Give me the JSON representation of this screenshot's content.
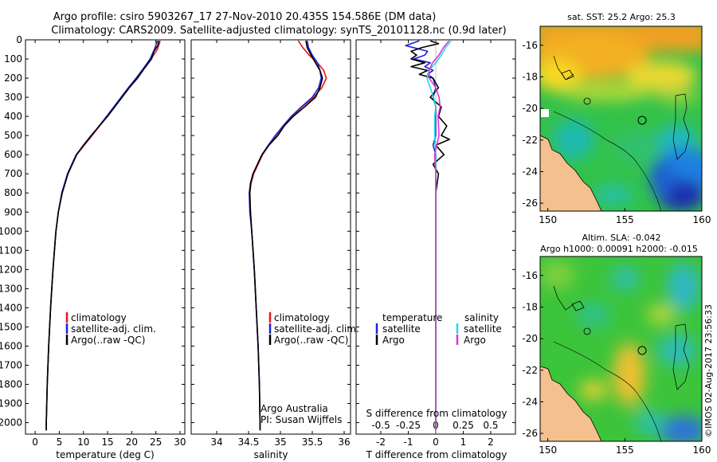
{
  "title": {
    "line1": "Argo profile: csiro 5903267_17 27-Nov-2010 20.435S 154.586E (DM data)",
    "line2": "Climatology: CARS2009. Satellite-adjusted climatology: synTS_20101128.nc (0.9d later)"
  },
  "colors": {
    "climatology": "#e8151b",
    "satellite": "#1c22d6",
    "argo": "#000000",
    "s_satellite": "#22d8e8",
    "s_argo": "#e030d0",
    "land": "#f4c08e"
  },
  "depth_ticks": [
    0,
    100,
    200,
    300,
    400,
    500,
    600,
    700,
    800,
    900,
    1000,
    1100,
    1200,
    1300,
    1400,
    1500,
    1600,
    1700,
    1800,
    1900,
    2000
  ],
  "chart_data": [
    {
      "type": "line",
      "id": "temperature",
      "xlabel": "temperature (deg C)",
      "ylabel": "",
      "xlim": [
        -2,
        31
      ],
      "ylim": [
        2060,
        0
      ],
      "xticks": [
        0,
        5,
        10,
        15,
        20,
        25,
        30
      ],
      "legend": {
        "placement": "bottom-center",
        "entries": [
          "climatology",
          "satellite-adj. clim.",
          "Argo(..raw -QC)"
        ]
      },
      "series": [
        {
          "name": "climatology",
          "depth": [
            5,
            50,
            100,
            150,
            200,
            250,
            300,
            350,
            400,
            500,
            600,
            700,
            800,
            900,
            1000,
            1200,
            1400,
            1600,
            1800,
            2000,
            2040
          ],
          "values": [
            25.9,
            25.3,
            24.0,
            22.5,
            21.0,
            19.4,
            17.9,
            16.4,
            14.9,
            11.8,
            8.6,
            6.8,
            5.6,
            4.8,
            4.3,
            3.7,
            3.2,
            2.8,
            2.5,
            2.3,
            2.3
          ]
        },
        {
          "name": "satellite-adj. clim.",
          "depth": [
            5,
            50,
            100,
            150,
            200,
            250,
            300,
            350,
            400,
            500,
            600,
            700,
            800,
            900,
            1000,
            1200,
            1400,
            1600,
            1800,
            2000,
            2040
          ],
          "values": [
            25.3,
            24.7,
            23.8,
            22.4,
            20.9,
            19.3,
            17.8,
            16.3,
            14.8,
            11.7,
            8.5,
            6.7,
            5.5,
            4.8,
            4.3,
            3.7,
            3.2,
            2.8,
            2.5,
            2.3,
            2.3
          ]
        },
        {
          "name": "Argo(..raw -QC)",
          "depth": [
            5,
            30,
            60,
            100,
            150,
            200,
            250,
            300,
            350,
            400,
            450,
            500,
            550,
            600,
            700,
            800,
            900,
            1000,
            1200,
            1400,
            1600,
            1800,
            2000,
            2040
          ],
          "values": [
            25.6,
            25.4,
            24.6,
            24.1,
            22.6,
            21.2,
            19.5,
            18.0,
            16.5,
            15.0,
            13.3,
            11.6,
            10.0,
            8.6,
            6.8,
            5.6,
            4.8,
            4.3,
            3.7,
            3.2,
            2.8,
            2.5,
            2.3,
            2.3
          ]
        }
      ]
    },
    {
      "type": "line",
      "id": "salinity",
      "xlabel": "salinity",
      "ylabel": "",
      "xlim": [
        33.6,
        36.1
      ],
      "ylim": [
        2060,
        0
      ],
      "xticks": [
        34,
        34.5,
        35,
        35.5,
        36
      ],
      "legend": {
        "placement": "bottom-center",
        "entries": [
          "climatology",
          "satellite-adj. clim.",
          "Argo(..raw -QC)"
        ]
      },
      "annotation": {
        "line1": "Argo Australia",
        "line2": "PI: Susan Wijffels"
      },
      "series": [
        {
          "name": "climatology",
          "depth": [
            5,
            40,
            80,
            120,
            160,
            200,
            250,
            300,
            350,
            400,
            450,
            500,
            550,
            600,
            650,
            700,
            750,
            800,
            900,
            1000,
            1200,
            1400,
            1600,
            1800,
            2000,
            2040
          ],
          "values": [
            35.28,
            35.35,
            35.45,
            35.58,
            35.68,
            35.72,
            35.65,
            35.52,
            35.34,
            35.18,
            35.05,
            34.93,
            34.82,
            34.72,
            34.65,
            34.58,
            34.54,
            34.52,
            34.53,
            34.55,
            34.59,
            34.62,
            34.65,
            34.67,
            34.68,
            34.68
          ]
        },
        {
          "name": "satellite-adj. clim.",
          "depth": [
            5,
            40,
            80,
            120,
            160,
            200,
            250,
            300,
            350,
            400,
            450,
            500,
            550,
            600,
            650,
            700,
            750,
            800,
            900,
            1000,
            1200,
            1400,
            1600,
            1800,
            2000,
            2040
          ],
          "values": [
            35.42,
            35.44,
            35.5,
            35.58,
            35.62,
            35.64,
            35.6,
            35.5,
            35.33,
            35.17,
            35.04,
            34.92,
            34.81,
            34.71,
            34.64,
            34.57,
            34.53,
            34.51,
            34.52,
            34.55,
            34.59,
            34.62,
            34.65,
            34.67,
            34.68,
            34.68
          ]
        },
        {
          "name": "Argo(..raw -QC)",
          "depth": [
            5,
            40,
            80,
            120,
            160,
            200,
            250,
            300,
            350,
            400,
            450,
            500,
            550,
            600,
            650,
            700,
            750,
            800,
            900,
            1000,
            1200,
            1400,
            1600,
            1800,
            2000,
            2040
          ],
          "values": [
            35.4,
            35.42,
            35.48,
            35.55,
            35.62,
            35.66,
            35.62,
            35.55,
            35.38,
            35.2,
            35.06,
            34.96,
            34.82,
            34.71,
            34.64,
            34.57,
            34.53,
            34.52,
            34.53,
            34.55,
            34.59,
            34.62,
            34.65,
            34.67,
            34.68,
            34.68
          ]
        }
      ]
    },
    {
      "type": "line",
      "id": "difference",
      "xlabel": "T difference from climatology",
      "xlabel_top": "S difference from climatology",
      "xlim": [
        -2.9,
        2.9
      ],
      "ylim": [
        2060,
        0
      ],
      "xticks_T": [
        -2,
        -1,
        0,
        1,
        2
      ],
      "xticks_S": [
        "-0.5",
        "-0.25",
        "0",
        "0.25",
        "0.5"
      ],
      "legend": {
        "placement": "bottom",
        "temperature_title": "temperature",
        "salinity_title": "salinity",
        "entries_T": [
          "satellite",
          "Argo"
        ],
        "entries_S": [
          "satellite",
          "Argo"
        ]
      },
      "series": [
        {
          "name": "T satellite",
          "depth": [
            5,
            30,
            60,
            80,
            100,
            120,
            140,
            160,
            180,
            200,
            250,
            300,
            350,
            400,
            450,
            500,
            550,
            600,
            700,
            800,
            1000,
            1500,
            2000,
            2040
          ],
          "values": [
            -0.6,
            -1.1,
            -0.3,
            -0.4,
            -0.8,
            -0.2,
            -0.4,
            -0.1,
            -0.3,
            -0.1,
            0.0,
            -0.1,
            0.0,
            0.0,
            0.0,
            0.0,
            -0.1,
            0.0,
            0.0,
            0.0,
            0.0,
            0.0,
            0.0,
            0.0
          ]
        },
        {
          "name": "T Argo",
          "depth": [
            5,
            20,
            40,
            60,
            80,
            100,
            120,
            140,
            160,
            180,
            200,
            250,
            300,
            350,
            400,
            450,
            500,
            520,
            550,
            600,
            650,
            700,
            800,
            1000,
            1500,
            2000,
            2040
          ],
          "values": [
            -0.2,
            0.1,
            -0.5,
            -0.9,
            -0.7,
            -0.9,
            -0.4,
            -0.9,
            -0.3,
            -0.6,
            -0.1,
            0.1,
            -0.2,
            0.2,
            0.1,
            0.4,
            0.2,
            0.5,
            0.0,
            0.3,
            -0.1,
            0.1,
            0.0,
            0.0,
            0.0,
            0.0,
            0.0
          ]
        },
        {
          "name": "S satellite",
          "depth": [
            5,
            40,
            80,
            120,
            160,
            200,
            250,
            300,
            350,
            400,
            500,
            600,
            700,
            800,
            1000,
            1500,
            2000,
            2040
          ],
          "values": [
            0.14,
            0.09,
            0.05,
            0.0,
            -0.06,
            -0.08,
            -0.05,
            -0.02,
            0.0,
            -0.01,
            -0.01,
            0.0,
            0.0,
            0.0,
            0.0,
            0.0,
            0.0,
            0.0
          ]
        },
        {
          "name": "S Argo",
          "depth": [
            5,
            40,
            80,
            120,
            160,
            200,
            250,
            300,
            350,
            400,
            500,
            600,
            700,
            800,
            1000,
            1500,
            2000,
            2040
          ],
          "values": [
            0.12,
            0.07,
            0.03,
            -0.03,
            -0.06,
            -0.06,
            0.0,
            0.03,
            0.04,
            0.02,
            0.03,
            -0.01,
            0.0,
            0.0,
            0.0,
            0.0,
            0.0,
            0.0
          ]
        }
      ]
    },
    {
      "type": "heatmap",
      "id": "sst_map",
      "title": "sat. SST: 25.2 Argo: 25.3",
      "xlim": [
        149.5,
        160
      ],
      "ylim": [
        -26.5,
        -14.8
      ],
      "xticks": [
        150,
        155,
        160
      ],
      "yticks": [
        -16,
        -18,
        -20,
        -22,
        -24,
        -26
      ],
      "argo_position": {
        "lon": 154.586,
        "lat": -20.435
      }
    },
    {
      "type": "heatmap",
      "id": "sla_map",
      "title_line1": "Altim. SLA: -0.042",
      "title_line2": "Argo h1000: 0.00091 h2000: -0.015",
      "xlim": [
        149.5,
        160
      ],
      "ylim": [
        -26.5,
        -14.8
      ],
      "xticks": [
        150,
        155,
        160
      ],
      "yticks": [
        -16,
        -18,
        -20,
        -22,
        -24,
        -26
      ],
      "argo_position": {
        "lon": 154.586,
        "lat": -20.435
      }
    }
  ],
  "footer": "©IMOS 02-Aug-2017 23:56:33"
}
